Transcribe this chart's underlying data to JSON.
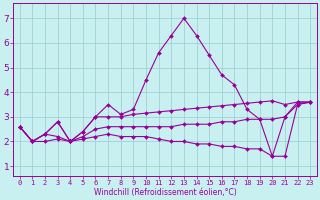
{
  "xlabel": "Windchill (Refroidissement éolien,°C)",
  "bg_color": "#c8f0f0",
  "line_color": "#990099",
  "grid_color": "#99cccc",
  "xlim": [
    -0.5,
    23.5
  ],
  "ylim": [
    0.6,
    7.6
  ],
  "xticks": [
    0,
    1,
    2,
    3,
    4,
    5,
    6,
    7,
    8,
    9,
    10,
    11,
    12,
    13,
    14,
    15,
    16,
    17,
    18,
    19,
    20,
    21,
    22,
    23
  ],
  "yticks": [
    1,
    2,
    3,
    4,
    5,
    6,
    7
  ],
  "series": [
    [
      2.6,
      2.0,
      2.3,
      2.8,
      2.0,
      2.4,
      3.0,
      3.5,
      3.1,
      3.3,
      4.5,
      5.6,
      6.3,
      7.0,
      6.3,
      5.5,
      4.7,
      4.3,
      3.3,
      2.9,
      1.4,
      3.0,
      3.6,
      3.6
    ],
    [
      2.6,
      2.0,
      2.3,
      2.8,
      2.0,
      2.4,
      3.0,
      3.0,
      3.0,
      3.1,
      3.15,
      3.2,
      3.25,
      3.3,
      3.35,
      3.4,
      3.45,
      3.5,
      3.55,
      3.6,
      3.65,
      3.5,
      3.6,
      3.6
    ],
    [
      2.6,
      2.0,
      2.3,
      2.2,
      2.0,
      2.2,
      2.5,
      2.6,
      2.6,
      2.6,
      2.6,
      2.6,
      2.6,
      2.7,
      2.7,
      2.7,
      2.8,
      2.8,
      2.9,
      2.9,
      2.9,
      3.0,
      3.5,
      3.6
    ],
    [
      2.6,
      2.0,
      2.0,
      2.1,
      2.0,
      2.1,
      2.2,
      2.3,
      2.2,
      2.2,
      2.2,
      2.1,
      2.0,
      2.0,
      1.9,
      1.9,
      1.8,
      1.8,
      1.7,
      1.7,
      1.4,
      1.4,
      3.5,
      3.6
    ]
  ],
  "marker_size": 2.0,
  "linewidth": 0.8,
  "tick_fontsize": 5.0,
  "label_fontsize": 5.5
}
